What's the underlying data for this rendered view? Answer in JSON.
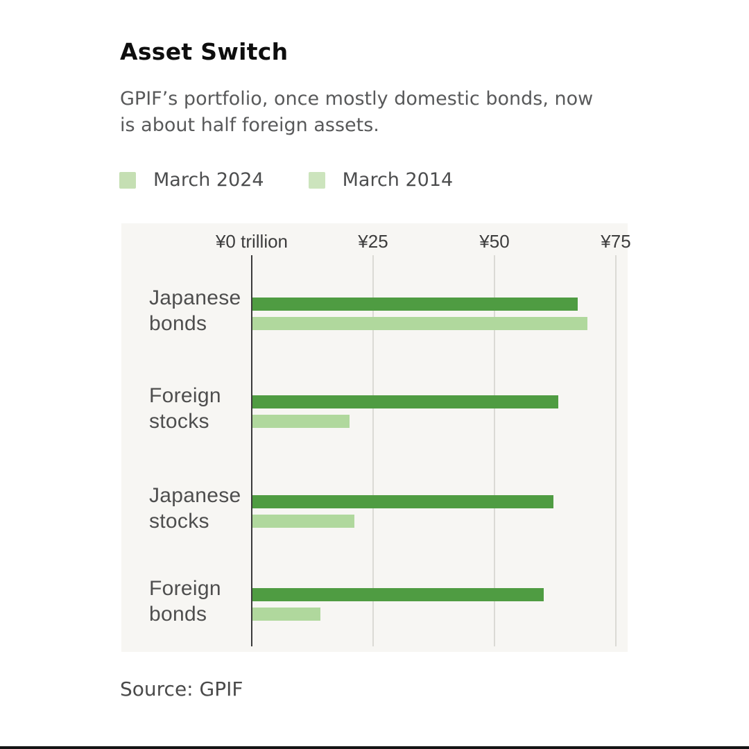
{
  "header": {
    "title": "Asset Switch",
    "subtitle_lines": [
      "GPIF’s portfolio, once mostly domestic bonds, now",
      "is about half foreign assets."
    ]
  },
  "legend": {
    "items": [
      {
        "label": "March 2024",
        "color": "#c5dfb3"
      },
      {
        "label": "March 2014",
        "color": "#cce4bd"
      }
    ]
  },
  "chart_data": {
    "type": "bar",
    "orientation": "horizontal",
    "title": "Asset Switch",
    "unit": "¥ trillion",
    "categories": [
      "Japanese bonds",
      "Foreign stocks",
      "Japanese stocks",
      "Foreign bonds"
    ],
    "series": [
      {
        "name": "March 2024",
        "color": "#4f9c42",
        "values": [
          67,
          63,
          62,
          60
        ]
      },
      {
        "name": "March 2014",
        "color": "#b0d89d",
        "values": [
          69,
          20,
          21,
          14
        ]
      }
    ],
    "x_axis": {
      "min": 0,
      "max": 77,
      "ticks": [
        0,
        25,
        50,
        75
      ],
      "tick_labels": [
        "¥0 trillion",
        "¥25",
        "¥50",
        "¥75"
      ]
    },
    "grid": true,
    "legend_position": "top-left"
  },
  "footer": {
    "source": "Source: GPIF"
  }
}
